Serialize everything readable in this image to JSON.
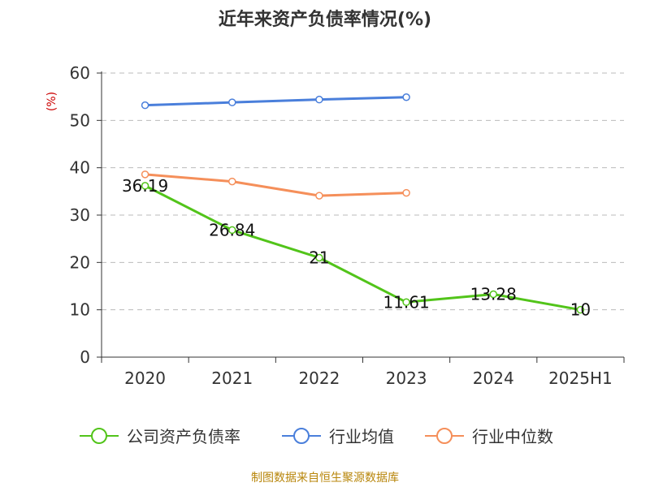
{
  "chart_data": {
    "type": "line",
    "title": "近年来资产负债率情况(%)",
    "ylabel": "(%)",
    "xlabel": "",
    "categories": [
      "2020",
      "2021",
      "2022",
      "2023",
      "2024",
      "2025H1"
    ],
    "ylim": [
      0,
      60
    ],
    "yticks": [
      0,
      10,
      20,
      30,
      40,
      50,
      60
    ],
    "grid": true,
    "legend_position": "bottom",
    "series": [
      {
        "name": "公司资产负债率",
        "color": "#52c41a",
        "values": [
          36.19,
          26.84,
          21,
          11.61,
          13.28,
          10
        ],
        "labels": [
          "36.19",
          "26.84",
          "21",
          "11.61",
          "13.28",
          "10"
        ]
      },
      {
        "name": "行业均值",
        "color": "#4a7fdb",
        "values": [
          53.2,
          53.8,
          54.4,
          54.9,
          null,
          null
        ]
      },
      {
        "name": "行业中位数",
        "color": "#f58f5a",
        "values": [
          38.6,
          37.1,
          34.1,
          34.7,
          null,
          null
        ]
      }
    ]
  },
  "source": "制图数据来自恒生聚源数据库"
}
